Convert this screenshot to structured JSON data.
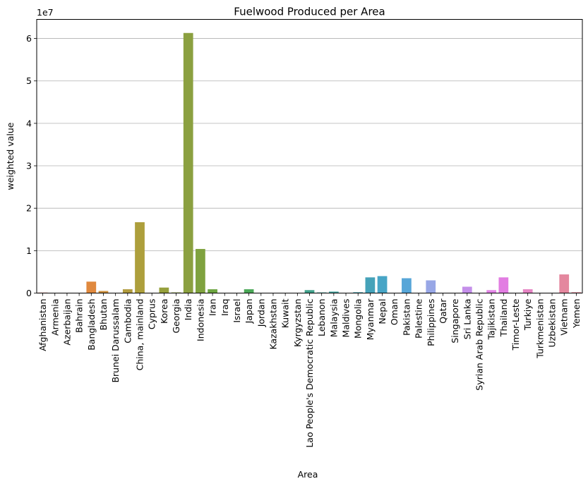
{
  "chart_data": {
    "type": "bar",
    "title": "Fuelwood Produced per Area",
    "xlabel": "Area",
    "ylabel": "weighted value",
    "y_offset_label": "1e7",
    "y_scale": 10000000,
    "ylim": [
      0,
      64500000
    ],
    "yticks": [
      0,
      10000000,
      20000000,
      30000000,
      40000000,
      50000000,
      60000000
    ],
    "ytick_labels": [
      "0",
      "1",
      "2",
      "3",
      "4",
      "5",
      "6"
    ],
    "grid": "horizontal",
    "categories": [
      "Afghanistan",
      "Armenia",
      "Azerbaijan",
      "Bahrain",
      "Bangladesh",
      "Bhutan",
      "Brunei Darussalam",
      "Cambodia",
      "China, mainland",
      "Cyprus",
      "Korea",
      "Georgia",
      "India",
      "Indonesia",
      "Iran",
      "Iraq",
      "Israel",
      "Japan",
      "Jordan",
      "Kazakhstan",
      "Kuwait",
      "Kyrgyzstan",
      "Lao People's Democratic Republic",
      "Lebanon",
      "Malaysia",
      "Maldives",
      "Mongolia",
      "Myanmar",
      "Nepal",
      "Oman",
      "Pakistan",
      "Palestine",
      "Philippines",
      "Qatar",
      "Singapore",
      "Sri Lanka",
      "Syrian Arab Republic",
      "Tajikistan",
      "Thailand",
      "Timor-Leste",
      "Turkiye",
      "Turkmenistan",
      "Uzbekistan",
      "Vietnam",
      "Yemen"
    ],
    "values": [
      120000,
      50000,
      30000,
      0,
      2700000,
      500000,
      40000,
      900000,
      16700000,
      10000,
      1300000,
      150000,
      61300000,
      10400000,
      900000,
      80000,
      10000,
      900000,
      10000,
      60000,
      0,
      30000,
      700000,
      150000,
      350000,
      10000,
      200000,
      3700000,
      4000000,
      0,
      3500000,
      10000,
      3000000,
      0,
      0,
      1500000,
      40000,
      700000,
      3700000,
      60000,
      900000,
      10000,
      80000,
      4400000,
      200000
    ],
    "colors": [
      "#e2776f",
      "#de8057",
      "#d38546",
      "#c98c41",
      "#e0893e",
      "#cc8f3d",
      "#c09540",
      "#b19b3e",
      "#ad9f3c",
      "#a3a23c",
      "#96a03c",
      "#8ea53d",
      "#8ba040",
      "#7fa23f",
      "#6da541",
      "#5daa46",
      "#53ad4c",
      "#4aa857",
      "#48a565",
      "#46a46e",
      "#44a477",
      "#43a482",
      "#40a18b",
      "#3fa195",
      "#42a19c",
      "#42a0a5",
      "#43a1ae",
      "#45a2b9",
      "#47a5c6",
      "#4aa6cf",
      "#57a6d8",
      "#71a8e0",
      "#98a7e6",
      "#a69be9",
      "#b995ea",
      "#c48fea",
      "#d28be8",
      "#e286e6",
      "#e27de2",
      "#e07fd0",
      "#e584c3",
      "#e683b5",
      "#e586a8",
      "#e4879e",
      "#e48796"
    ]
  }
}
